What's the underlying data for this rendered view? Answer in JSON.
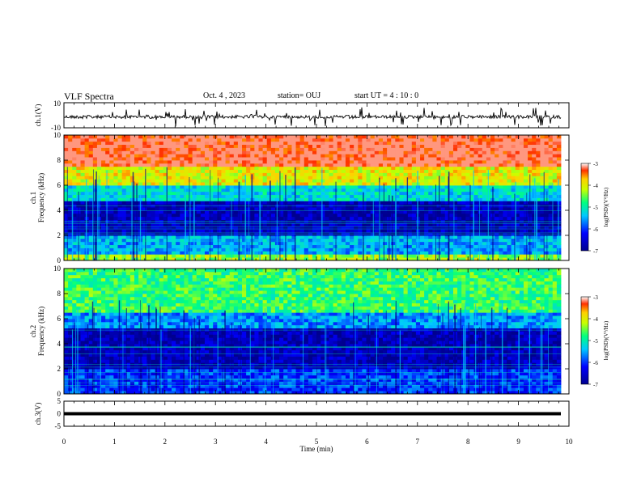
{
  "header": {
    "title": "VLF Spectra",
    "date": "Oct. 4 , 2023",
    "station": "station= OUJ",
    "start_ut": "start UT =  4 : 10 : 0"
  },
  "chart_data": [
    {
      "type": "line",
      "ylabel": "ch.1(V)",
      "ylim": [
        -10,
        10
      ],
      "yticks": [
        "10",
        "-10"
      ],
      "xlim": [
        0,
        10
      ],
      "series": [
        {
          "approx_mean": 0,
          "approx_spike_range": [
            -8,
            8
          ],
          "values": []
        }
      ],
      "colors": {
        "line": "#000000"
      }
    },
    {
      "type": "heatmap",
      "ylabel": "ch.1\nFrequency (kHz)",
      "ylim": [
        0,
        10
      ],
      "yticks": [
        "0",
        "2",
        "4",
        "6",
        "8",
        "10"
      ],
      "xlim": [
        0,
        9.85
      ],
      "zlim": [
        -7,
        -3
      ],
      "colorbar_label": "log(PSD)(V²/Hz)",
      "colorbar_ticks": [
        "-3",
        "-4",
        "-5",
        "-6",
        "-7"
      ],
      "bands": [
        {
          "from_khz": 0,
          "to_khz": 0.5,
          "level": -4.3
        },
        {
          "from_khz": 0.5,
          "to_khz": 2.0,
          "level": -5.5
        },
        {
          "from_khz": 2.0,
          "to_khz": 4.8,
          "level": -6.7
        },
        {
          "from_khz": 4.8,
          "to_khz": 6.0,
          "level": -5.2
        },
        {
          "from_khz": 6.0,
          "to_khz": 7.5,
          "level": -4.0
        },
        {
          "from_khz": 7.5,
          "to_khz": 10.0,
          "level": -3.1
        }
      ]
    },
    {
      "type": "heatmap",
      "ylabel": "ch.2\nFrequency (kHz)",
      "ylim": [
        0,
        10
      ],
      "yticks": [
        "0",
        "2",
        "4",
        "6",
        "8",
        "10"
      ],
      "xlim": [
        0,
        9.85
      ],
      "zlim": [
        -7,
        -3
      ],
      "colorbar_label": "log(PSD)(V²/Hz)",
      "colorbar_ticks": [
        "-3",
        "-4",
        "-5",
        "-6",
        "-7"
      ],
      "bands": [
        {
          "from_khz": 0,
          "to_khz": 2.0,
          "level": -6.0
        },
        {
          "from_khz": 2.0,
          "to_khz": 5.3,
          "level": -6.7
        },
        {
          "from_khz": 5.3,
          "to_khz": 6.5,
          "level": -5.6
        },
        {
          "from_khz": 6.5,
          "to_khz": 10.0,
          "level": -4.7
        }
      ]
    },
    {
      "type": "line",
      "ylabel": "ch.3(V)",
      "ylim": [
        -5,
        5
      ],
      "yticks": [
        "5",
        "0",
        "-5"
      ],
      "xlim": [
        0,
        10
      ],
      "series": [
        {
          "approx_value": 0,
          "values": [
            0,
            0
          ]
        }
      ],
      "xlabel": "Time (min)",
      "xticks": [
        "0",
        "1",
        "2",
        "3",
        "4",
        "5",
        "6",
        "7",
        "8",
        "9",
        "10"
      ],
      "colors": {
        "line": "#000000"
      }
    }
  ]
}
